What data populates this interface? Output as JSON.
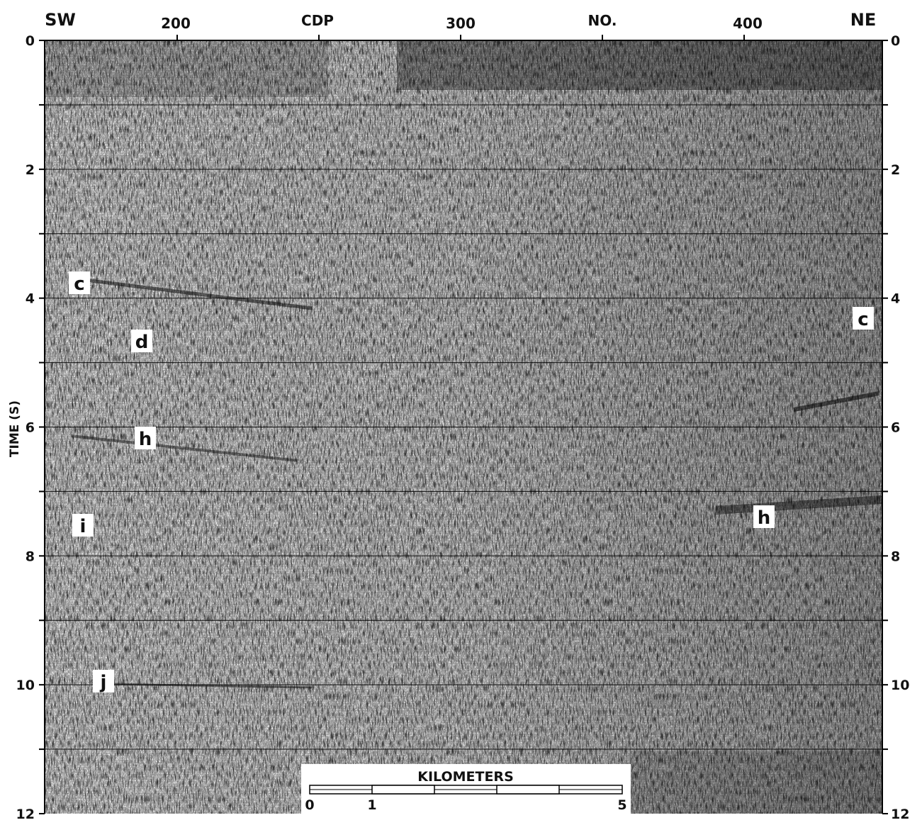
{
  "top_labels": [
    "SW",
    "200",
    "CDP",
    "300",
    "NO.",
    "400",
    "NE"
  ],
  "time_axis": {
    "label": "TIME (S)",
    "left_ticks": [
      0,
      2,
      4,
      6,
      8,
      10,
      12
    ],
    "right_ticks": [
      0,
      2,
      4,
      6,
      8,
      10,
      12
    ]
  },
  "annotations": [
    "c",
    "c",
    "d",
    "h",
    "h",
    "i",
    "j"
  ],
  "scale_bar": {
    "title": "KILOMETERS",
    "labels": [
      "0",
      "1",
      "5"
    ]
  }
}
